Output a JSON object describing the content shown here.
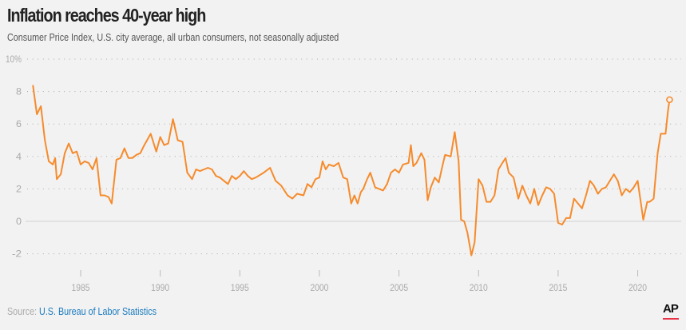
{
  "title": "Inflation reaches 40-year high",
  "subtitle": "Consumer Price Index, U.S. city average, all urban consumers, not seasonally adjusted",
  "source_label": "Source:",
  "source_link": "U.S. Bureau of Labor Statistics",
  "logo": "AP",
  "colors": {
    "line": "#f68b2c",
    "background": "#f2f2f2",
    "grid": "#aaaaaa",
    "zero_line": "#dddddd",
    "source_link": "#1a7bbf",
    "logo_bar": "#e8334a"
  },
  "chart_data": {
    "type": "line",
    "title": "Inflation reaches 40-year high",
    "xlabel": "",
    "ylabel": "",
    "ylim": [
      -2,
      10
    ],
    "xlim": [
      1982,
      2022
    ],
    "grid": "horizontal dotted",
    "y_ticks": [
      {
        "value": 10,
        "label": "10%"
      },
      {
        "value": 8,
        "label": "8"
      },
      {
        "value": 6,
        "label": "6"
      },
      {
        "value": 4,
        "label": "4"
      },
      {
        "value": 2,
        "label": "2"
      },
      {
        "value": 0,
        "label": "0"
      },
      {
        "value": -2,
        "label": "-2"
      }
    ],
    "x_ticks": [
      {
        "value": 1985,
        "label": "1985"
      },
      {
        "value": 1990,
        "label": "1990"
      },
      {
        "value": 1995,
        "label": "1995"
      },
      {
        "value": 2000,
        "label": "2000"
      },
      {
        "value": 2005,
        "label": "2005"
      },
      {
        "value": 2010,
        "label": "2010"
      },
      {
        "value": 2015,
        "label": "2015"
      },
      {
        "value": 2020,
        "label": "2020"
      }
    ],
    "end_marker": "hollow circle at last point",
    "series": [
      {
        "points": [
          [
            1982.0,
            8.4
          ],
          [
            1982.25,
            6.6
          ],
          [
            1982.5,
            7.1
          ],
          [
            1982.75,
            5.0
          ],
          [
            1983.0,
            3.7
          ],
          [
            1983.25,
            3.5
          ],
          [
            1983.4,
            3.9
          ],
          [
            1983.5,
            2.6
          ],
          [
            1983.75,
            2.9
          ],
          [
            1984.0,
            4.2
          ],
          [
            1984.25,
            4.8
          ],
          [
            1984.5,
            4.2
          ],
          [
            1984.75,
            4.3
          ],
          [
            1985.0,
            3.5
          ],
          [
            1985.25,
            3.7
          ],
          [
            1985.5,
            3.6
          ],
          [
            1985.75,
            3.2
          ],
          [
            1986.0,
            3.9
          ],
          [
            1986.25,
            1.6
          ],
          [
            1986.5,
            1.6
          ],
          [
            1986.75,
            1.5
          ],
          [
            1986.95,
            1.1
          ],
          [
            1987.25,
            3.8
          ],
          [
            1987.5,
            3.9
          ],
          [
            1987.75,
            4.5
          ],
          [
            1988.0,
            3.9
          ],
          [
            1988.25,
            3.9
          ],
          [
            1988.5,
            4.1
          ],
          [
            1988.75,
            4.2
          ],
          [
            1989.0,
            4.7
          ],
          [
            1989.4,
            5.4
          ],
          [
            1989.75,
            4.3
          ],
          [
            1990.0,
            5.2
          ],
          [
            1990.25,
            4.7
          ],
          [
            1990.5,
            4.8
          ],
          [
            1990.8,
            6.3
          ],
          [
            1991.1,
            5.0
          ],
          [
            1991.4,
            4.9
          ],
          [
            1991.7,
            3.0
          ],
          [
            1992.0,
            2.6
          ],
          [
            1992.25,
            3.2
          ],
          [
            1992.5,
            3.1
          ],
          [
            1992.75,
            3.2
          ],
          [
            1993.0,
            3.3
          ],
          [
            1993.25,
            3.2
          ],
          [
            1993.5,
            2.8
          ],
          [
            1993.75,
            2.7
          ],
          [
            1994.0,
            2.5
          ],
          [
            1994.25,
            2.3
          ],
          [
            1994.5,
            2.8
          ],
          [
            1994.75,
            2.6
          ],
          [
            1995.0,
            2.8
          ],
          [
            1995.25,
            3.1
          ],
          [
            1995.5,
            2.8
          ],
          [
            1995.75,
            2.6
          ],
          [
            1996.0,
            2.7
          ],
          [
            1996.5,
            3.0
          ],
          [
            1996.9,
            3.3
          ],
          [
            1997.25,
            2.5
          ],
          [
            1997.6,
            2.2
          ],
          [
            1998.0,
            1.6
          ],
          [
            1998.3,
            1.4
          ],
          [
            1998.6,
            1.7
          ],
          [
            1999.0,
            1.6
          ],
          [
            1999.25,
            2.3
          ],
          [
            1999.5,
            2.1
          ],
          [
            1999.75,
            2.6
          ],
          [
            2000.0,
            2.7
          ],
          [
            2000.2,
            3.7
          ],
          [
            2000.4,
            3.2
          ],
          [
            2000.6,
            3.5
          ],
          [
            2000.9,
            3.4
          ],
          [
            2001.2,
            3.6
          ],
          [
            2001.5,
            2.7
          ],
          [
            2001.75,
            2.6
          ],
          [
            2002.0,
            1.1
          ],
          [
            2002.2,
            1.6
          ],
          [
            2002.4,
            1.1
          ],
          [
            2002.6,
            1.8
          ],
          [
            2002.75,
            2.0
          ],
          [
            2003.0,
            2.6
          ],
          [
            2003.2,
            3.0
          ],
          [
            2003.5,
            2.1
          ],
          [
            2003.75,
            2.0
          ],
          [
            2004.0,
            1.9
          ],
          [
            2004.25,
            2.3
          ],
          [
            2004.5,
            3.0
          ],
          [
            2004.75,
            3.2
          ],
          [
            2005.0,
            3.0
          ],
          [
            2005.25,
            3.5
          ],
          [
            2005.6,
            3.6
          ],
          [
            2005.75,
            4.7
          ],
          [
            2005.9,
            3.4
          ],
          [
            2006.1,
            3.6
          ],
          [
            2006.4,
            4.2
          ],
          [
            2006.6,
            3.8
          ],
          [
            2006.8,
            1.3
          ],
          [
            2007.0,
            2.1
          ],
          [
            2007.25,
            2.7
          ],
          [
            2007.5,
            2.4
          ],
          [
            2007.75,
            3.5
          ],
          [
            2007.9,
            4.1
          ],
          [
            2008.25,
            4.0
          ],
          [
            2008.5,
            5.5
          ],
          [
            2008.75,
            3.7
          ],
          [
            2008.9,
            0.1
          ],
          [
            2009.1,
            0.0
          ],
          [
            2009.3,
            -0.7
          ],
          [
            2009.55,
            -2.1
          ],
          [
            2009.75,
            -1.3
          ],
          [
            2010.0,
            2.6
          ],
          [
            2010.25,
            2.2
          ],
          [
            2010.5,
            1.2
          ],
          [
            2010.75,
            1.2
          ],
          [
            2011.0,
            1.6
          ],
          [
            2011.25,
            3.2
          ],
          [
            2011.5,
            3.6
          ],
          [
            2011.7,
            3.9
          ],
          [
            2011.9,
            3.0
          ],
          [
            2012.2,
            2.7
          ],
          [
            2012.5,
            1.4
          ],
          [
            2012.75,
            2.2
          ],
          [
            2013.0,
            1.6
          ],
          [
            2013.25,
            1.1
          ],
          [
            2013.5,
            2.0
          ],
          [
            2013.75,
            1.0
          ],
          [
            2014.0,
            1.6
          ],
          [
            2014.25,
            2.1
          ],
          [
            2014.5,
            2.0
          ],
          [
            2014.75,
            1.7
          ],
          [
            2015.0,
            -0.1
          ],
          [
            2015.25,
            -0.2
          ],
          [
            2015.5,
            0.2
          ],
          [
            2015.75,
            0.2
          ],
          [
            2016.0,
            1.4
          ],
          [
            2016.25,
            1.1
          ],
          [
            2016.5,
            0.8
          ],
          [
            2016.75,
            1.6
          ],
          [
            2017.0,
            2.5
          ],
          [
            2017.25,
            2.2
          ],
          [
            2017.5,
            1.7
          ],
          [
            2017.75,
            2.0
          ],
          [
            2018.0,
            2.1
          ],
          [
            2018.5,
            2.9
          ],
          [
            2018.75,
            2.5
          ],
          [
            2019.0,
            1.6
          ],
          [
            2019.25,
            2.0
          ],
          [
            2019.5,
            1.8
          ],
          [
            2019.75,
            2.1
          ],
          [
            2020.0,
            2.5
          ],
          [
            2020.35,
            0.1
          ],
          [
            2020.6,
            1.2
          ],
          [
            2020.75,
            1.2
          ],
          [
            2021.0,
            1.4
          ],
          [
            2021.25,
            4.2
          ],
          [
            2021.45,
            5.4
          ],
          [
            2021.75,
            5.4
          ],
          [
            2021.9,
            6.8
          ],
          [
            2022.0,
            7.5
          ]
        ]
      }
    ]
  }
}
